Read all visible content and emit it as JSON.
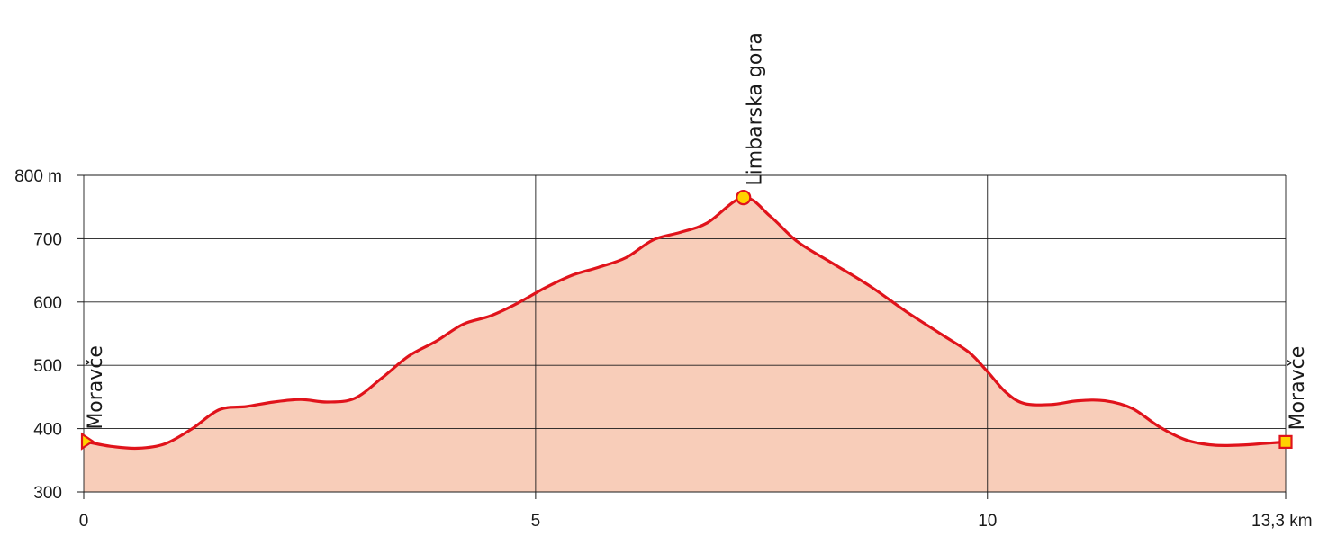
{
  "chart_data": {
    "type": "area",
    "title": "",
    "xlabel": "",
    "ylabel": "",
    "xlim": [
      0,
      13.3
    ],
    "ylim": [
      300,
      800
    ],
    "grid": true,
    "x_ticks": [
      {
        "value": 0,
        "label": "0"
      },
      {
        "value": 5,
        "label": "5"
      },
      {
        "value": 10,
        "label": "10"
      },
      {
        "value": 13.3,
        "label": "13,3 km"
      }
    ],
    "y_ticks": [
      {
        "value": 300,
        "label": "300"
      },
      {
        "value": 400,
        "label": "400"
      },
      {
        "value": 500,
        "label": "500"
      },
      {
        "value": 600,
        "label": "600"
      },
      {
        "value": 700,
        "label": "700"
      },
      {
        "value": 800,
        "label": "800 m"
      }
    ],
    "series": [
      {
        "x": [
          0,
          0.3,
          0.6,
          0.9,
          1.2,
          1.5,
          1.8,
          2.1,
          2.4,
          2.7,
          3.0,
          3.3,
          3.6,
          3.9,
          4.2,
          4.5,
          4.8,
          5.1,
          5.4,
          5.7,
          6.0,
          6.3,
          6.6,
          6.9,
          7.3,
          7.6,
          7.9,
          8.3,
          8.7,
          9.1,
          9.5,
          9.8,
          10.0,
          10.2,
          10.4,
          10.7,
          11.0,
          11.3,
          11.6,
          11.9,
          12.2,
          12.5,
          12.8,
          13.1,
          13.3
        ],
        "y": [
          380,
          372,
          369,
          376,
          400,
          430,
          435,
          442,
          446,
          442,
          448,
          480,
          515,
          538,
          565,
          578,
          598,
          622,
          642,
          655,
          670,
          698,
          710,
          725,
          765,
          735,
          695,
          660,
          625,
          585,
          548,
          520,
          490,
          458,
          440,
          438,
          444,
          444,
          432,
          403,
          382,
          374,
          374,
          377,
          379
        ]
      }
    ],
    "waypoints": [
      {
        "x": 0,
        "y": 380,
        "label": "Moravče",
        "marker": "triangle"
      },
      {
        "x": 7.3,
        "y": 765,
        "label": "Limbarska gora",
        "marker": "circle"
      },
      {
        "x": 13.3,
        "y": 379,
        "label": "Moravče",
        "marker": "square"
      }
    ],
    "colors": {
      "line": "#e0131b",
      "fill": "#f8cdb9",
      "marker_fill": "#ffd300",
      "marker_stroke": "#e0131b",
      "grid": "#1a1a1a",
      "text": "#1a1a1a"
    }
  }
}
